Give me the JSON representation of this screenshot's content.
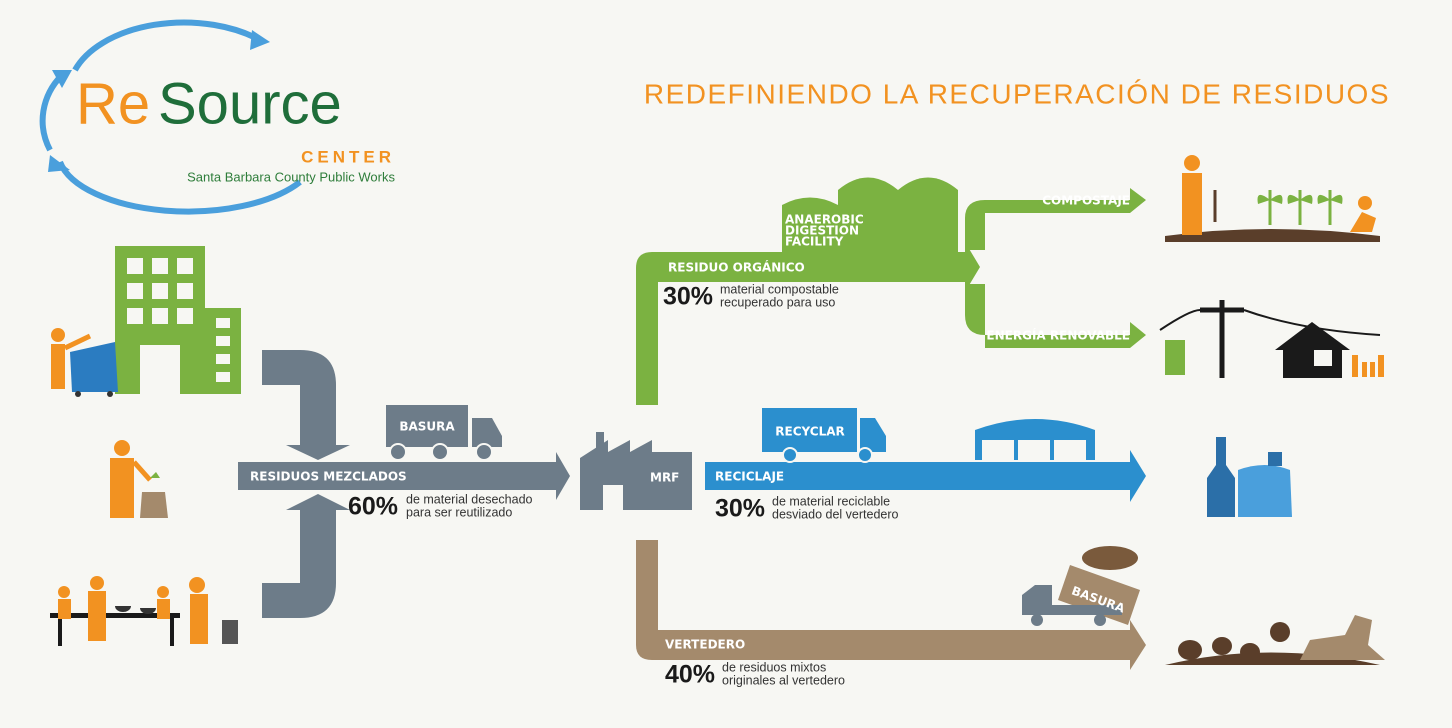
{
  "logo": {
    "re": "Re",
    "source": "Source",
    "center": "CENTER",
    "subtitle": "Santa Barbara County Public Works"
  },
  "title": "REDEFINIENDO LA RECUPERACIÓN DE RESIDUOS",
  "mixed": {
    "label": "RESIDUOS MEZCLADOS",
    "percent": "60%",
    "description": [
      "de material desechado",
      "para ser reutilizado"
    ],
    "truck": "BASURA"
  },
  "mrf": {
    "label": "MRF"
  },
  "organic": {
    "label": "RESIDUO ORGÁNICO",
    "percent": "30%",
    "description": [
      "material compostable",
      "recuperado para uso"
    ],
    "facility": [
      "ANAEROBIC",
      "DIGESTION",
      "FACILITY"
    ],
    "branches": [
      "COMPOSTAJE",
      "ENERGÍA RENOVABLE"
    ]
  },
  "recycling": {
    "label": "RECICLAJE",
    "percent": "30%",
    "description": [
      "de material reciclable",
      "desviado del vertedero"
    ],
    "truck": "RECYCLAR"
  },
  "landfill": {
    "label": "VERTEDERO",
    "percent": "40%",
    "description": [
      "de residuos mixtos",
      "originales al vertedero"
    ],
    "truck": "BASURA"
  }
}
